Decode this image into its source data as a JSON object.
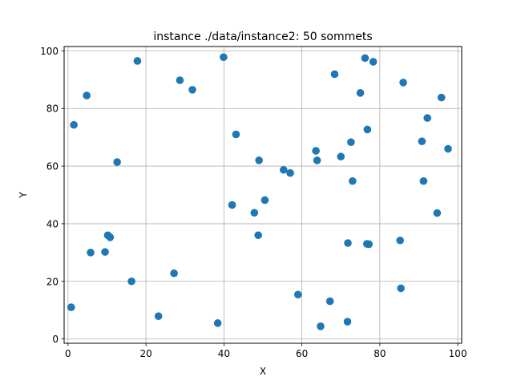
{
  "chart_data": {
    "type": "scatter",
    "title": "instance ./data/instance2: 50 sommets",
    "xlabel": "X",
    "ylabel": "Y",
    "xlim": [
      -1,
      101
    ],
    "ylim": [
      -1.5,
      101.5
    ],
    "x_ticks": [
      0,
      20,
      40,
      60,
      80,
      100
    ],
    "y_ticks": [
      0,
      20,
      40,
      60,
      80,
      100
    ],
    "grid": true,
    "marker_color": "#1f77b4",
    "x": [
      0.8,
      1.5,
      4.8,
      5.8,
      9.5,
      10.2,
      10.8,
      12.6,
      16.3,
      17.8,
      23.2,
      27.2,
      28.7,
      31.9,
      38.4,
      39.9,
      42.1,
      43.1,
      47.8,
      48.8,
      49.0,
      50.5,
      55.3,
      57.0,
      59.0,
      63.6,
      63.9,
      64.8,
      67.2,
      68.4,
      70.0,
      71.7,
      71.8,
      72.6,
      73.0,
      75.0,
      76.2,
      76.7,
      76.8,
      77.2,
      78.3,
      85.2,
      85.4,
      86.0,
      90.8,
      91.2,
      92.2,
      94.7,
      95.8,
      97.5
    ],
    "y": [
      11.0,
      74.3,
      84.5,
      30.0,
      30.2,
      36.0,
      35.3,
      61.4,
      20.0,
      96.5,
      7.9,
      22.8,
      89.8,
      86.5,
      5.5,
      97.8,
      46.5,
      71.0,
      43.8,
      36.0,
      62.0,
      48.2,
      58.7,
      57.6,
      15.4,
      65.3,
      62.0,
      4.4,
      13.1,
      91.9,
      63.3,
      6.0,
      33.3,
      68.3,
      54.8,
      85.4,
      97.5,
      33.0,
      72.7,
      32.9,
      96.2,
      34.2,
      17.6,
      89.0,
      68.6,
      54.8,
      76.7,
      43.7,
      83.8,
      66.0
    ]
  }
}
